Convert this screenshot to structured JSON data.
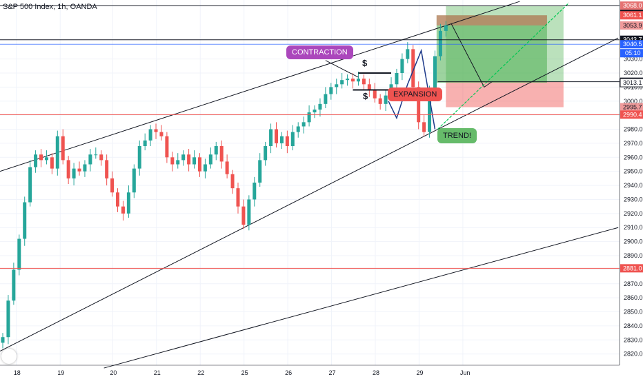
{
  "header": {
    "title": "S&P 500 Index, 1h, OANDA"
  },
  "annotations": {
    "contraction": "CONTRACTION",
    "expansion": "EXPANSION",
    "trend": "TREND!",
    "dollar_top": "$",
    "dollar_bottom": "$"
  },
  "colors": {
    "up": "#26a69a",
    "down": "#ef5350",
    "annot_purple": "#ab47bc",
    "annot_green": "#66bb6a",
    "annot_red": "#ef5350",
    "profit_zone": "#4caf50",
    "loss_zone": "#ef5350",
    "price_label": "#2962ff",
    "support_line": "#ef5350"
  },
  "chart_data": {
    "type": "candlestick",
    "yrange": [
      2812,
      3072
    ],
    "y_ticks": [
      2820,
      2830,
      2840,
      2850,
      2860,
      2870,
      2880,
      2890,
      2900,
      2910,
      2920,
      2930,
      2940,
      2950,
      2960,
      2970,
      2980,
      2990,
      3000,
      3010,
      3020,
      3030
    ],
    "x_ticks": [
      {
        "label": "18",
        "x": 0
      },
      {
        "label": "19",
        "x": 10
      },
      {
        "label": "20",
        "x": 22
      },
      {
        "label": "21",
        "x": 32
      },
      {
        "label": "22",
        "x": 42
      },
      {
        "label": "25",
        "x": 52
      },
      {
        "label": "26",
        "x": 62
      },
      {
        "label": "27",
        "x": 72
      },
      {
        "label": "28",
        "x": 82
      },
      {
        "label": "29",
        "x": 92
      },
      {
        "label": "Jun",
        "x": 102
      }
    ],
    "x_last": 104,
    "price_path": [
      [
        0,
        2832
      ],
      [
        1,
        2858
      ],
      [
        2,
        2880
      ],
      [
        3,
        2902
      ],
      [
        4,
        2928
      ],
      [
        5,
        2953
      ],
      [
        6,
        2962
      ],
      [
        7,
        2958
      ],
      [
        8,
        2960
      ],
      [
        9,
        2952
      ],
      [
        10,
        2975
      ],
      [
        11,
        2958
      ],
      [
        12,
        2945
      ],
      [
        13,
        2952
      ],
      [
        14,
        2950
      ],
      [
        15,
        2955
      ],
      [
        16,
        2962
      ],
      [
        17,
        2962
      ],
      [
        18,
        2958
      ],
      [
        19,
        2945
      ],
      [
        20,
        2935
      ],
      [
        21,
        2925
      ],
      [
        22,
        2920
      ],
      [
        23,
        2935
      ],
      [
        24,
        2952
      ],
      [
        25,
        2968
      ],
      [
        26,
        2972
      ],
      [
        27,
        2980
      ],
      [
        28,
        2978
      ],
      [
        29,
        2975
      ],
      [
        30,
        2960
      ],
      [
        31,
        2955
      ],
      [
        32,
        2958
      ],
      [
        33,
        2962
      ],
      [
        34,
        2955
      ],
      [
        35,
        2960
      ],
      [
        36,
        2950
      ],
      [
        37,
        2955
      ],
      [
        38,
        2962
      ],
      [
        39,
        2968
      ],
      [
        40,
        2957
      ],
      [
        41,
        2948
      ],
      [
        42,
        2938
      ],
      [
        43,
        2925
      ],
      [
        44,
        2912
      ],
      [
        45,
        2930
      ],
      [
        46,
        2942
      ],
      [
        47,
        2958
      ],
      [
        48,
        2968
      ],
      [
        49,
        2980
      ],
      [
        50,
        2970
      ],
      [
        51,
        2975
      ],
      [
        52,
        2968
      ],
      [
        53,
        2978
      ],
      [
        54,
        2982
      ],
      [
        55,
        2985
      ],
      [
        56,
        2992
      ],
      [
        57,
        2994
      ],
      [
        58,
        2998
      ],
      [
        59,
        3005
      ],
      [
        60,
        3010
      ],
      [
        61,
        3012
      ],
      [
        62,
        3015
      ],
      [
        63,
        3016
      ],
      [
        64,
        3014
      ],
      [
        65,
        3016
      ],
      [
        66,
        3012
      ],
      [
        67,
        3008
      ],
      [
        68,
        3002
      ],
      [
        69,
        2998
      ],
      [
        70,
        3004
      ],
      [
        71,
        3012
      ],
      [
        72,
        3020
      ],
      [
        73,
        3030
      ],
      [
        74,
        3037
      ],
      [
        75,
        3010
      ],
      [
        76,
        2985
      ],
      [
        77,
        2978
      ],
      [
        78,
        3008
      ],
      [
        79,
        3032
      ],
      [
        80,
        3050
      ],
      [
        81,
        3054
      ]
    ],
    "current_price": "3043.7",
    "countdown": "05:10",
    "levels": {
      "target_top": "3068.0",
      "target": "3061.1",
      "stop_upper": "3053.9",
      "current": "3043.7",
      "blue": "3040.5",
      "entry_upper": "3013.8",
      "entry": "3013.1",
      "stop": "2995.7",
      "support": "2990.4",
      "support2": "2881.0",
      "top_cut": "3068.8"
    },
    "level_values": {
      "target_top": 3068.0,
      "target": 3061.1,
      "stop_upper": 3053.9,
      "current": 3043.7,
      "blue": 3040.5,
      "entry_upper": 3013.8,
      "entry": 3013.1,
      "stop": 2995.7,
      "support": 2990.4,
      "support2": 2881.0,
      "top_cut": 3068.8
    }
  }
}
